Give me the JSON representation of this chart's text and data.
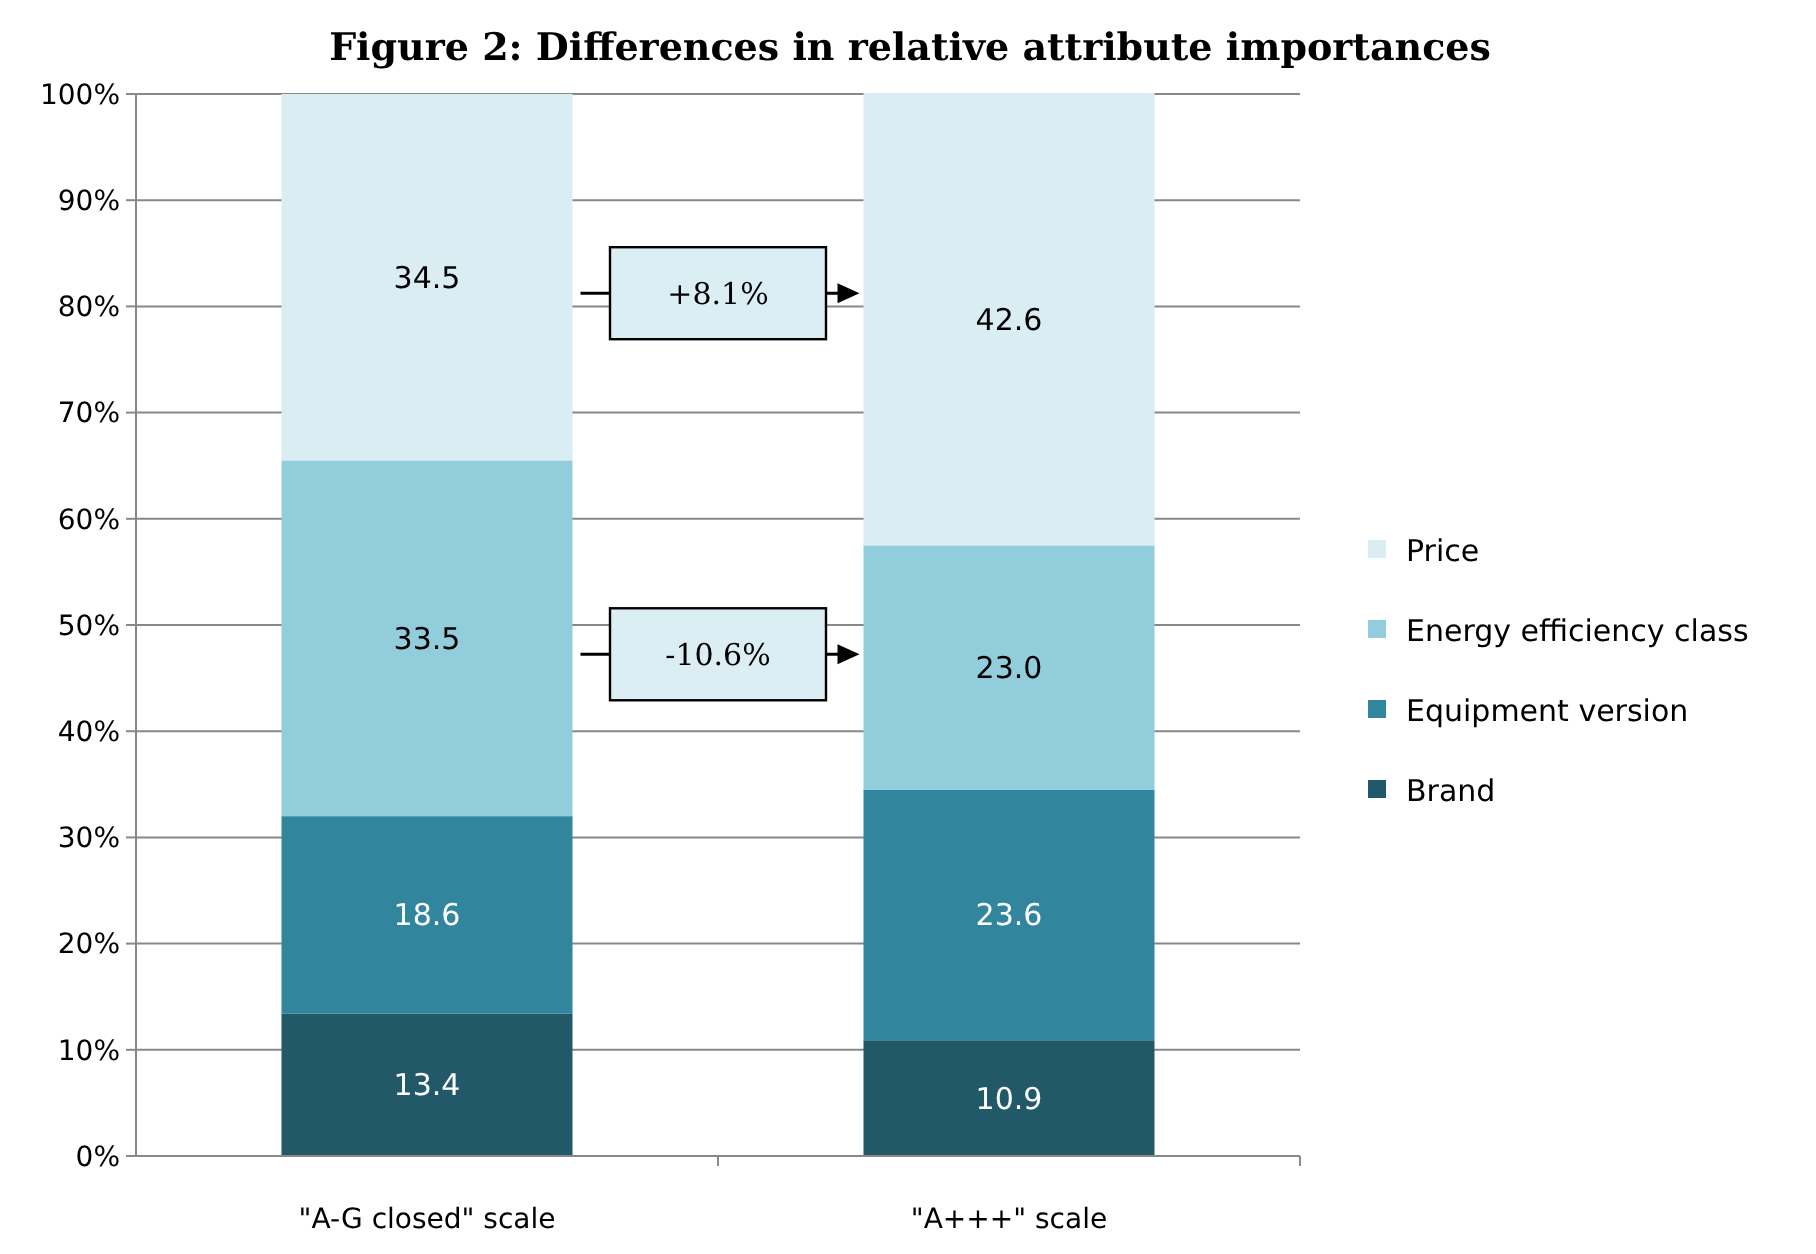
{
  "chart_data": {
    "type": "bar",
    "stacked": true,
    "title": "Figure 2: Differences in relative attribute importances",
    "categories": [
      "\"A-G closed\" scale",
      "\"A+++\" scale"
    ],
    "series": [
      {
        "name": "Brand",
        "color": "#215968",
        "values": [
          13.4,
          10.9
        ],
        "value_labels": [
          "13.4",
          "10.9"
        ]
      },
      {
        "name": "Equipment version",
        "color": "#31859c",
        "values": [
          18.6,
          23.6
        ],
        "value_labels": [
          "18.6",
          "23.6"
        ]
      },
      {
        "name": "Energy efficiency class",
        "color": "#92cddc",
        "values": [
          33.5,
          23.0
        ],
        "value_labels": [
          "33.5",
          "23.0"
        ]
      },
      {
        "name": "Price",
        "color": "#daedf3",
        "values": [
          34.5,
          42.6
        ],
        "value_labels": [
          "34.5",
          "42.6"
        ]
      }
    ],
    "ylim": [
      0,
      100
    ],
    "yticks": [
      {
        "value": 0,
        "label": "0%"
      },
      {
        "value": 10,
        "label": "10%"
      },
      {
        "value": 20,
        "label": "20%"
      },
      {
        "value": 30,
        "label": "30%"
      },
      {
        "value": 40,
        "label": "40%"
      },
      {
        "value": 50,
        "label": "50%"
      },
      {
        "value": 60,
        "label": "60%"
      },
      {
        "value": 70,
        "label": "70%"
      },
      {
        "value": 80,
        "label": "80%"
      },
      {
        "value": 90,
        "label": "90%"
      },
      {
        "value": 100,
        "label": "100%"
      }
    ],
    "grid": "y",
    "legend": "right",
    "annotations": [
      "+8.1%",
      "-10.6%"
    ]
  }
}
